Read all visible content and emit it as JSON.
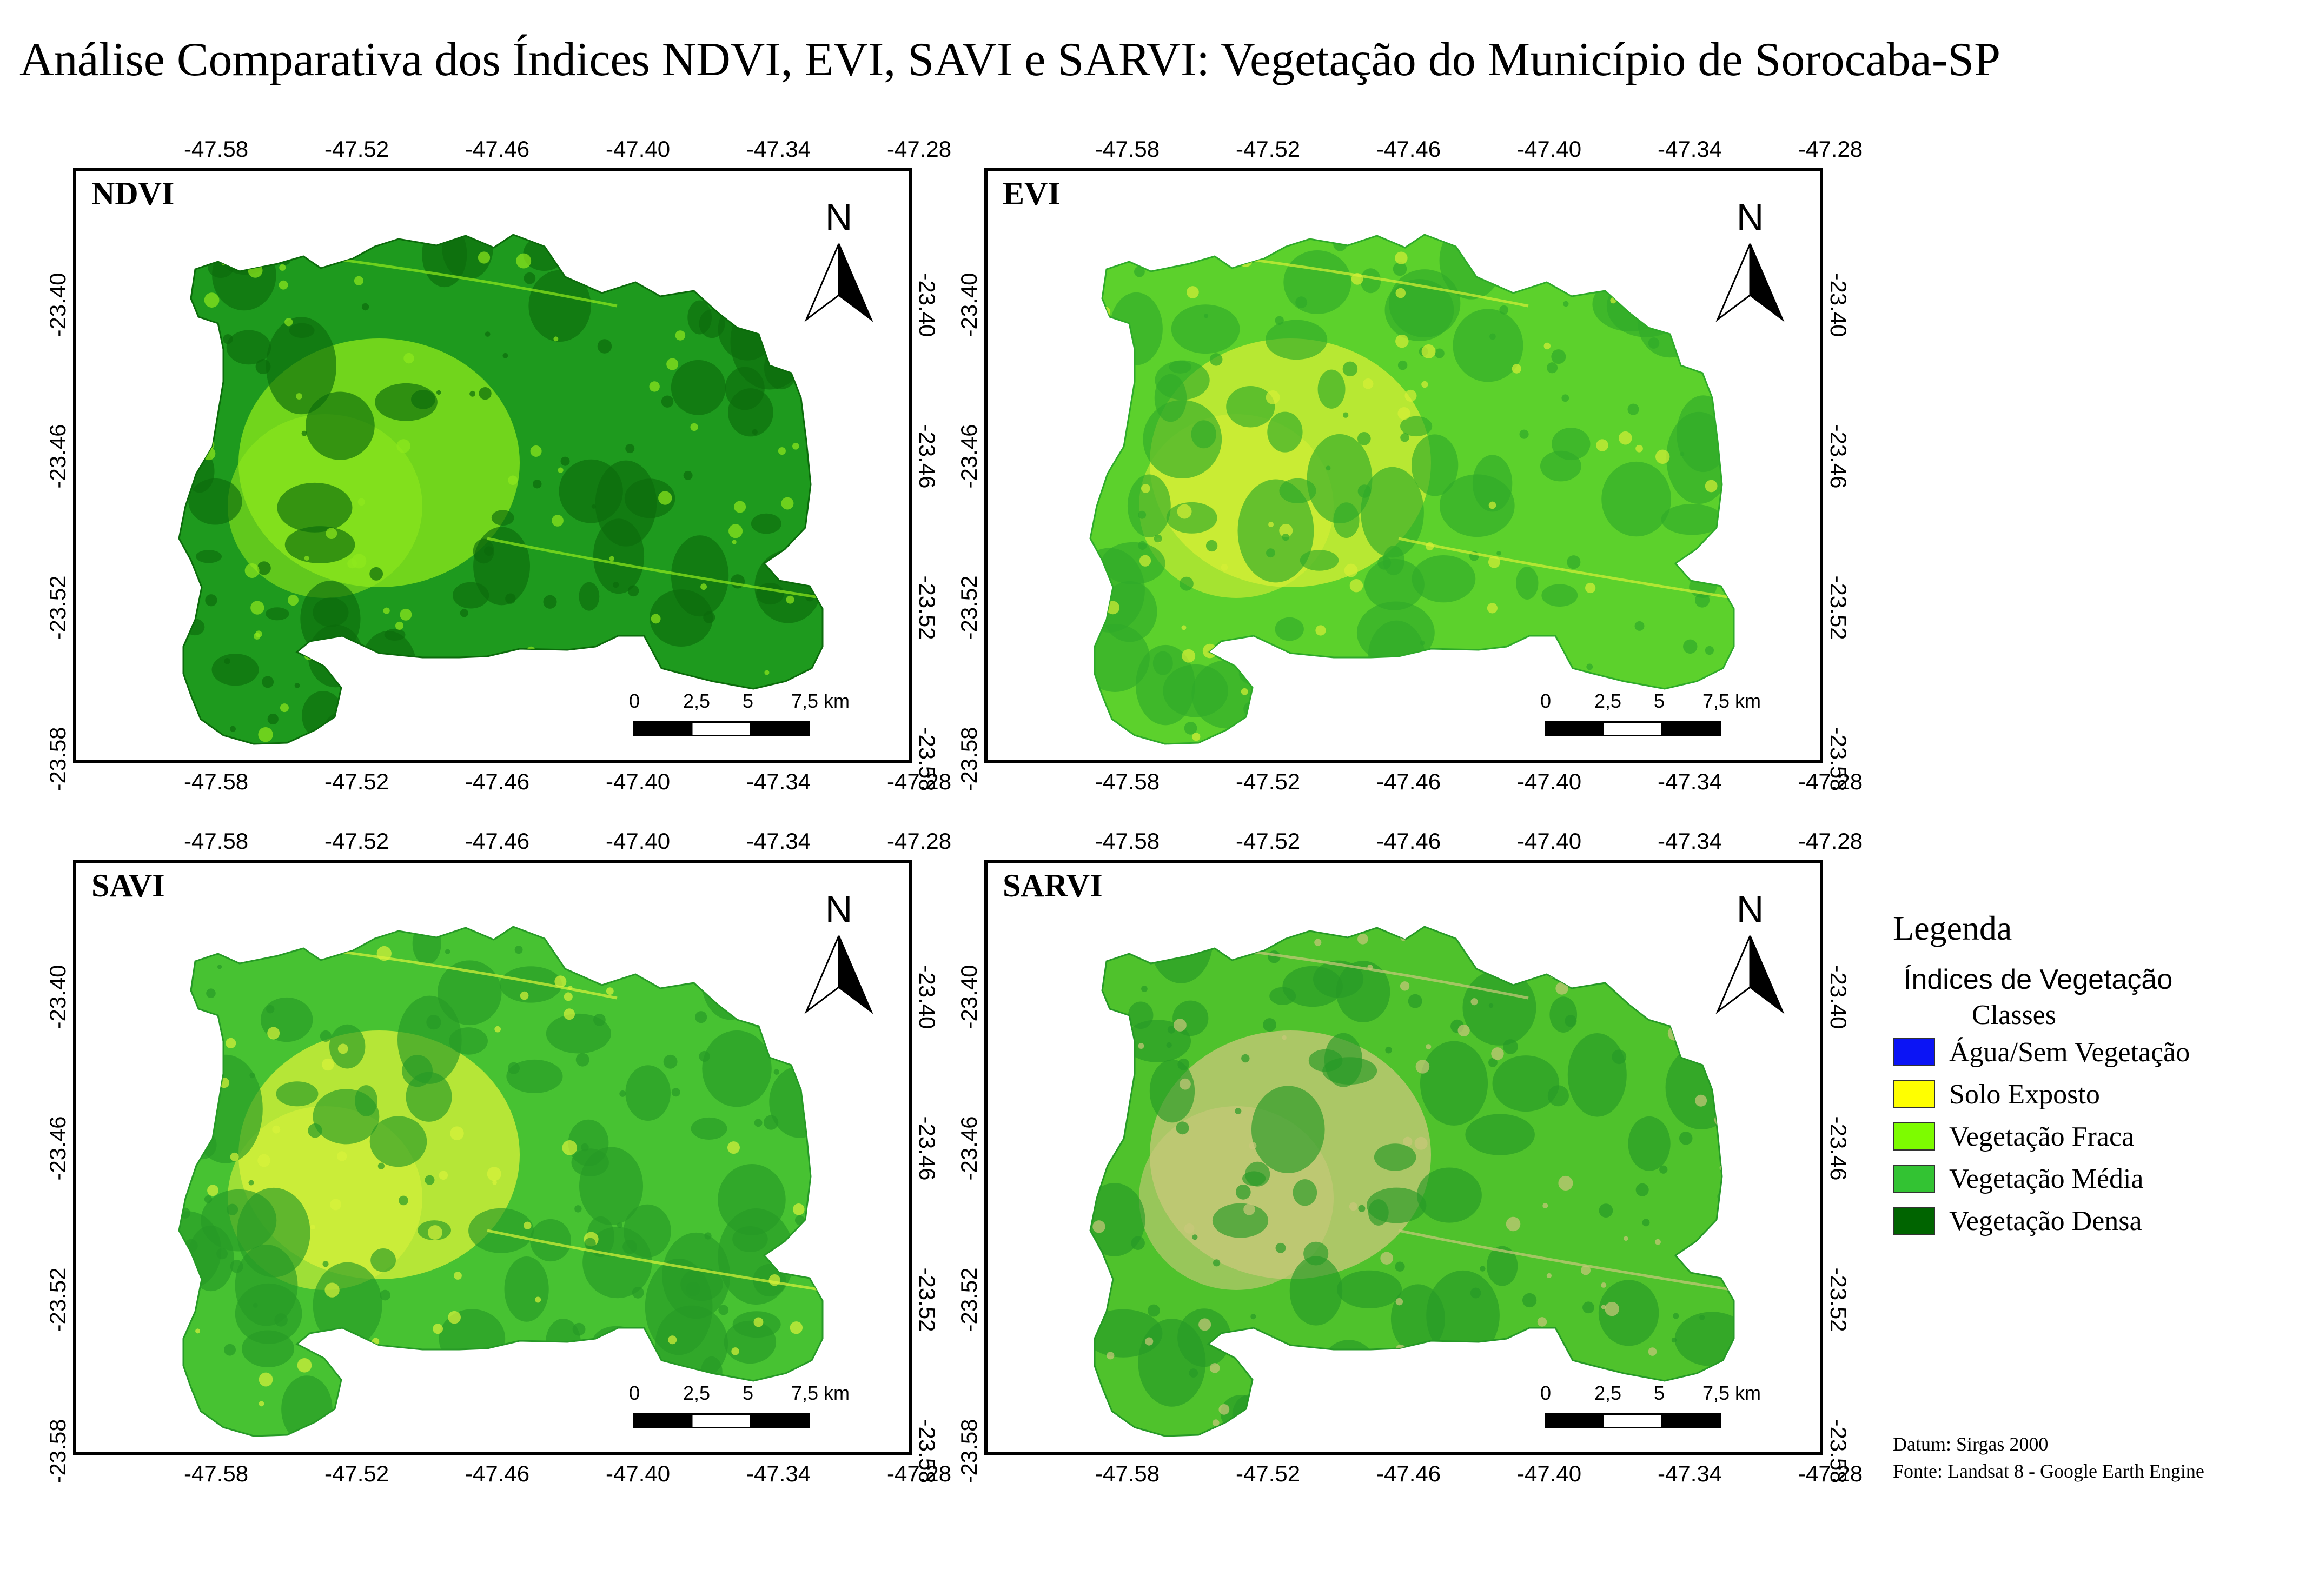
{
  "title": "Análise Comparativa dos Índices NDVI, EVI, SAVI e SARVI: Vegetação do Município de Sorocaba-SP",
  "lon_ticks": [
    "-47.58",
    "-47.52",
    "-47.46",
    "-47.40",
    "-47.34",
    "-47.28"
  ],
  "lat_ticks": [
    "-23.40",
    "-23.46",
    "-23.52",
    "-23.58"
  ],
  "north_label": "N",
  "scale": {
    "labels": [
      "0",
      "2,5",
      "5",
      "7,5 km"
    ]
  },
  "panels": [
    {
      "label": "NDVI",
      "fill": "#1e9a1e",
      "patch": "#0c6b0c",
      "light": "#8ee81c"
    },
    {
      "label": "EVI",
      "fill": "#5cd12c",
      "patch": "#2faa2a",
      "light": "#d6ef36"
    },
    {
      "label": "SAVI",
      "fill": "#47c232",
      "patch": "#279a27",
      "light": "#d9f23a"
    },
    {
      "label": "SARVI",
      "fill": "#4fc22c",
      "patch": "#279a27",
      "light": "#c9c87a"
    }
  ],
  "legend": {
    "title": "Legenda",
    "subtitle": "Índices de Vegetação",
    "classes_label": "Classes",
    "items": [
      {
        "label": "Água/Sem Vegetação",
        "color": "#0b14f5"
      },
      {
        "label": "Solo Exposto",
        "color": "#ffff00"
      },
      {
        "label": "Vegetação Fraca",
        "color": "#7dfc00"
      },
      {
        "label": "Vegetação Média",
        "color": "#33c333"
      },
      {
        "label": "Vegetação Densa",
        "color": "#006400"
      }
    ]
  },
  "footer": {
    "datum": "Datum: Sirgas 2000",
    "source": "Fonte: Landsat 8 - Google Earth Engine"
  }
}
